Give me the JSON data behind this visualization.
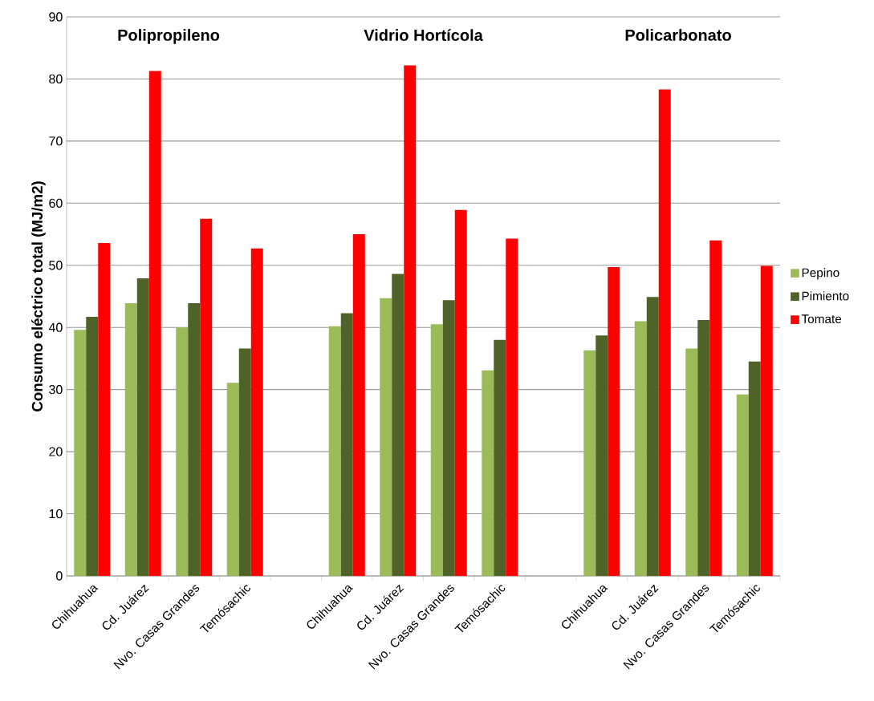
{
  "chart_data": {
    "type": "bar",
    "ylabel": "Consumo eléctrico total (MJ/m2)",
    "categories": [
      "Chihuahua",
      "Cd. Juárez",
      "Nvo. Casas Grandes",
      "Temósachic",
      null,
      "Chihuahua",
      "Cd. Juárez",
      "Nvo. Casas Grandes",
      "Temósachic",
      null,
      "Chihuahua",
      "Cd. Juárez",
      "Nvo. Casas Grandes",
      "Temósachic"
    ],
    "series": [
      {
        "name": "Pepino",
        "color": "#9bbb59",
        "values": [
          39.6,
          43.9,
          40.0,
          31.1,
          null,
          40.2,
          44.7,
          40.5,
          33.1,
          null,
          36.3,
          41.0,
          36.6,
          29.2
        ]
      },
      {
        "name": "Pimiento",
        "color": "#4f6228",
        "values": [
          41.7,
          47.9,
          43.9,
          36.6,
          null,
          42.3,
          48.6,
          44.4,
          38.0,
          null,
          38.7,
          44.9,
          41.2,
          34.5
        ]
      },
      {
        "name": "Tomate",
        "color": "#ff0000",
        "values": [
          53.6,
          81.3,
          57.5,
          52.7,
          null,
          55.0,
          82.2,
          58.9,
          54.3,
          null,
          49.7,
          78.3,
          54.0,
          49.9
        ]
      }
    ],
    "annotations": [
      "Polipropileno",
      "Vidrio Hortícola",
      "Policarbonato"
    ],
    "ylim": [
      0,
      90
    ],
    "yticks": [
      0,
      10,
      20,
      30,
      40,
      50,
      60,
      70,
      80,
      90
    ],
    "grid": "y",
    "legend": "right"
  }
}
